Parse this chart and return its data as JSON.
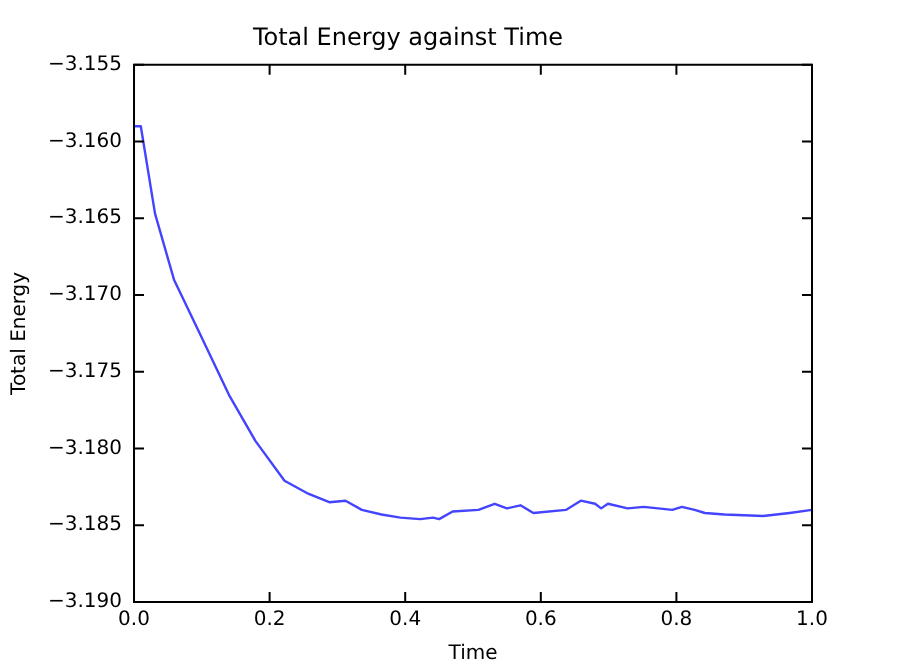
{
  "chart_data": {
    "type": "line",
    "title": "Total Energy against Time",
    "xlabel": "Time",
    "ylabel": "Total Energy",
    "x": [
      0,
      0.01,
      0.031,
      0.059,
      0.097,
      0.14,
      0.179,
      0.222,
      0.255,
      0.288,
      0.312,
      0.336,
      0.365,
      0.393,
      0.422,
      0.441,
      0.45,
      0.47,
      0.508,
      0.532,
      0.55,
      0.57,
      0.589,
      0.637,
      0.659,
      0.68,
      0.689,
      0.699,
      0.728,
      0.752,
      0.794,
      0.808,
      0.827,
      0.842,
      0.871,
      0.928,
      0.967,
      1.0
    ],
    "series": [
      {
        "color": "#4444ff",
        "values": [
          -3.159,
          -3.159,
          -3.1647,
          -3.169,
          -3.1725,
          -3.1765,
          -3.1795,
          -3.1821,
          -3.1829,
          -3.1835,
          -3.1834,
          -3.184,
          -3.1843,
          -3.1845,
          -3.1846,
          -3.1845,
          -3.1846,
          -3.1841,
          -3.184,
          -3.1836,
          -3.1839,
          -3.1837,
          -3.1842,
          -3.184,
          -3.1834,
          -3.1836,
          -3.1839,
          -3.1836,
          -3.1839,
          -3.1838,
          -3.184,
          -3.1838,
          -3.184,
          -3.1842,
          -3.1843,
          -3.1844,
          -3.1842,
          -3.184
        ]
      }
    ],
    "xlim": [
      0,
      1
    ],
    "xticks": [
      {
        "value": 0,
        "label": "0.0"
      },
      {
        "value": 0.2,
        "label": "0.2"
      },
      {
        "value": 0.4,
        "label": "0.4"
      },
      {
        "value": 0.6,
        "label": "0.6"
      },
      {
        "value": 0.8,
        "label": "0.8"
      },
      {
        "value": 1,
        "label": "1.0"
      }
    ],
    "ylim": [
      -3.19,
      -3.155
    ],
    "yticks": [
      {
        "value": -3.19,
        "label": "−3.190"
      },
      {
        "value": -3.185,
        "label": "−3.185"
      },
      {
        "value": -3.18,
        "label": "−3.180"
      },
      {
        "value": -3.175,
        "label": "−3.175"
      },
      {
        "value": -3.17,
        "label": "−3.170"
      },
      {
        "value": -3.165,
        "label": "−3.165"
      },
      {
        "value": -3.16,
        "label": "−3.160"
      },
      {
        "value": -3.155,
        "label": "−3.155"
      }
    ],
    "grid": false,
    "legend": false,
    "marker": "none",
    "line_style": "solid"
  }
}
